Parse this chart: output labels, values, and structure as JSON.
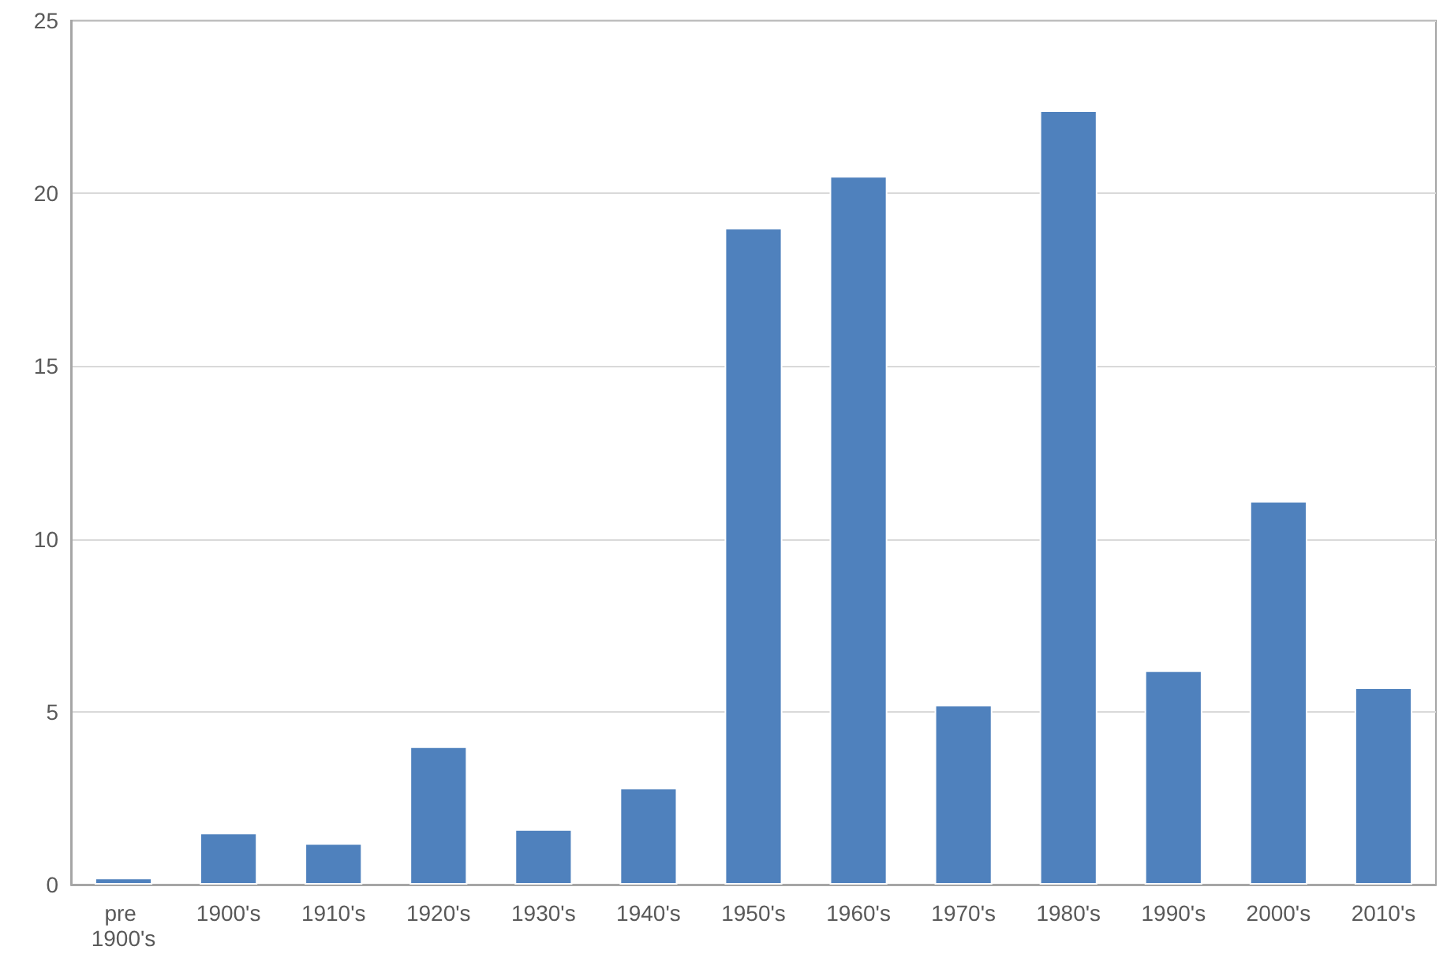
{
  "chart_data": {
    "type": "bar",
    "categories": [
      "pre 1900's",
      "1900's",
      "1910's",
      "1920's",
      "1930's",
      "1940's",
      "1950's",
      "1960's",
      "1970's",
      "1980's",
      "1990's",
      "2000's",
      "2010's"
    ],
    "values": [
      0.2,
      1.5,
      1.2,
      4.0,
      1.6,
      2.8,
      19.0,
      20.5,
      5.2,
      22.4,
      6.2,
      11.1,
      5.7
    ],
    "color": "#4f81bd",
    "ylim": [
      0,
      25
    ],
    "yticks": [
      0,
      5,
      10,
      15,
      20,
      25
    ],
    "grid": "y"
  }
}
